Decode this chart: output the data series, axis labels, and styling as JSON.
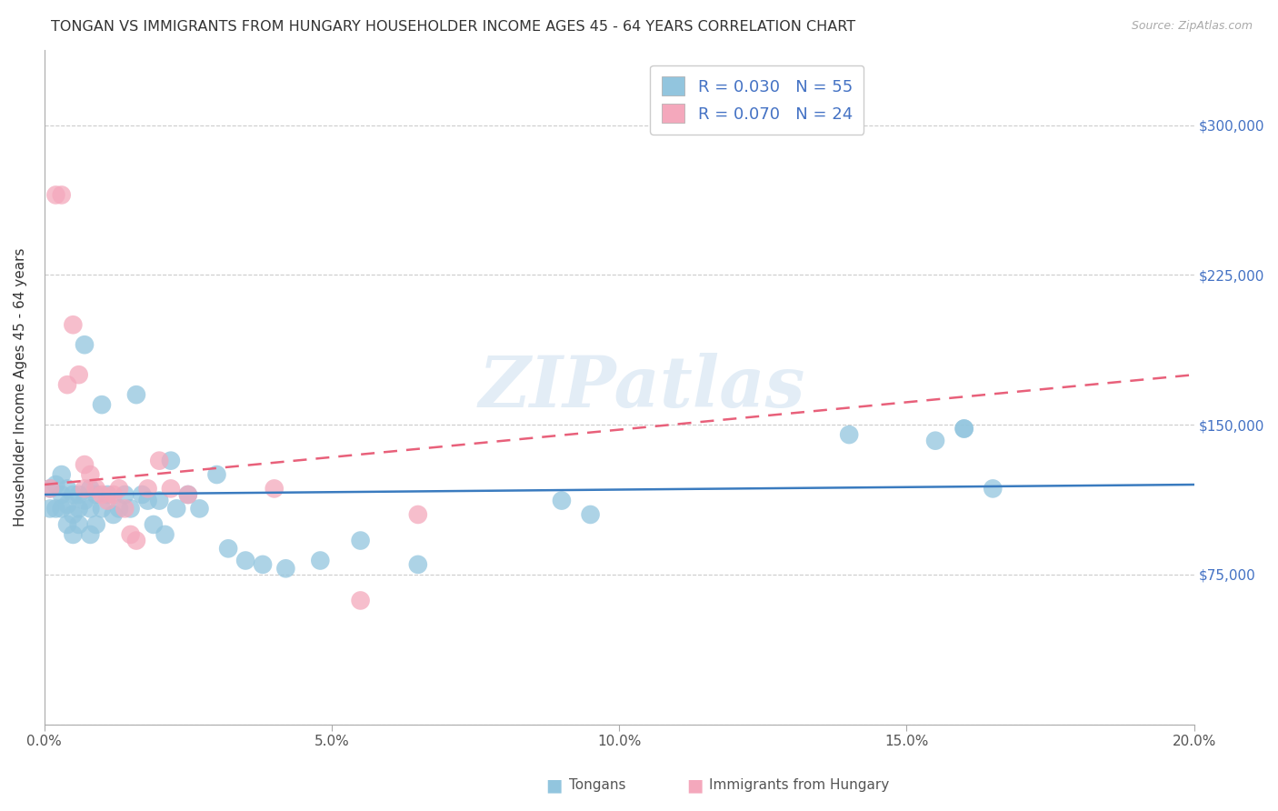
{
  "title": "TONGAN VS IMMIGRANTS FROM HUNGARY HOUSEHOLDER INCOME AGES 45 - 64 YEARS CORRELATION CHART",
  "source": "Source: ZipAtlas.com",
  "ylabel": "Householder Income Ages 45 - 64 years",
  "xlim": [
    0.0,
    0.2
  ],
  "ylim": [
    0,
    337500
  ],
  "xtick_labels": [
    "0.0%",
    "5.0%",
    "10.0%",
    "15.0%",
    "20.0%"
  ],
  "xtick_vals": [
    0.0,
    0.05,
    0.1,
    0.15,
    0.2
  ],
  "ytick_vals": [
    0,
    75000,
    150000,
    225000,
    300000
  ],
  "ytick_labels": [
    "",
    "$75,000",
    "$150,000",
    "$225,000",
    "$300,000"
  ],
  "watermark": "ZIPatlas",
  "blue_color": "#92c5de",
  "pink_color": "#f4a8bc",
  "blue_line_color": "#3a7bbf",
  "pink_line_color": "#e8607a",
  "label_color": "#4472c4",
  "tongans_label": "Tongans",
  "hungary_label": "Immigrants from Hungary",
  "blue_x": [
    0.001,
    0.001,
    0.002,
    0.002,
    0.003,
    0.003,
    0.003,
    0.004,
    0.004,
    0.004,
    0.005,
    0.005,
    0.005,
    0.006,
    0.006,
    0.006,
    0.007,
    0.007,
    0.008,
    0.008,
    0.008,
    0.009,
    0.009,
    0.01,
    0.01,
    0.011,
    0.012,
    0.013,
    0.014,
    0.015,
    0.016,
    0.017,
    0.018,
    0.019,
    0.02,
    0.021,
    0.022,
    0.023,
    0.025,
    0.027,
    0.03,
    0.032,
    0.035,
    0.038,
    0.042,
    0.048,
    0.055,
    0.065,
    0.09,
    0.095,
    0.14,
    0.155,
    0.16,
    0.16,
    0.165
  ],
  "blue_y": [
    118000,
    108000,
    120000,
    108000,
    125000,
    115000,
    108000,
    118000,
    110000,
    100000,
    115000,
    105000,
    95000,
    115000,
    108000,
    100000,
    190000,
    112000,
    118000,
    108000,
    95000,
    115000,
    100000,
    160000,
    108000,
    115000,
    105000,
    108000,
    115000,
    108000,
    165000,
    115000,
    112000,
    100000,
    112000,
    95000,
    132000,
    108000,
    115000,
    108000,
    125000,
    88000,
    82000,
    80000,
    78000,
    82000,
    92000,
    80000,
    112000,
    105000,
    145000,
    142000,
    148000,
    148000,
    118000
  ],
  "pink_x": [
    0.001,
    0.002,
    0.003,
    0.004,
    0.005,
    0.006,
    0.007,
    0.007,
    0.008,
    0.009,
    0.01,
    0.011,
    0.012,
    0.013,
    0.014,
    0.015,
    0.016,
    0.018,
    0.02,
    0.022,
    0.025,
    0.04,
    0.055,
    0.065
  ],
  "pink_y": [
    118000,
    265000,
    265000,
    170000,
    200000,
    175000,
    130000,
    118000,
    125000,
    118000,
    115000,
    112000,
    115000,
    118000,
    108000,
    95000,
    92000,
    118000,
    132000,
    118000,
    115000,
    118000,
    62000,
    105000
  ]
}
